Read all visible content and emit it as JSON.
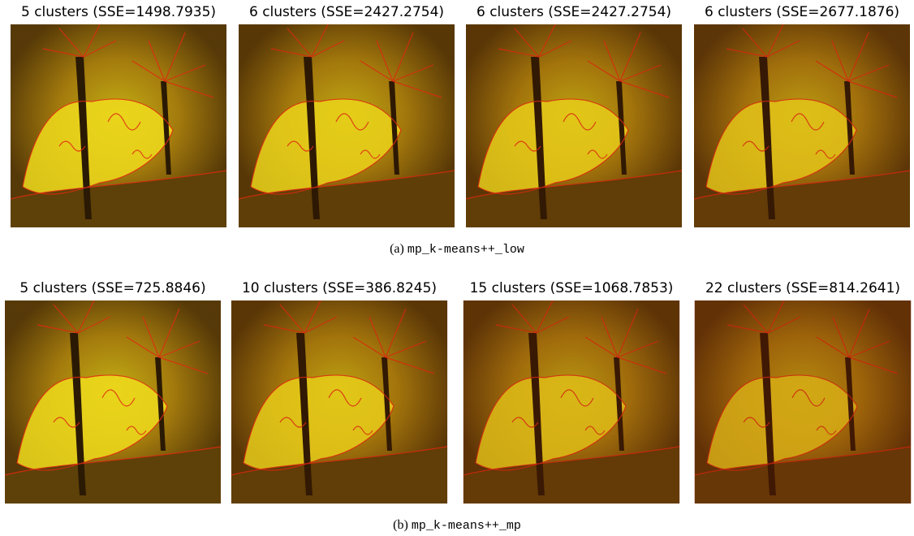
{
  "figure": {
    "rows": [
      {
        "panels": [
          {
            "title": "5 clusters (SSE=1498.7935)"
          },
          {
            "title": "6 clusters (SSE=2427.2754)"
          },
          {
            "title": "6 clusters (SSE=2427.2754)"
          },
          {
            "title": "6 clusters (SSE=2677.1876)"
          }
        ],
        "caption": {
          "label": "(a)",
          "method": "mp_k-means++_low"
        }
      },
      {
        "panels": [
          {
            "title": "5 clusters (SSE=725.8846)"
          },
          {
            "title": "10 clusters (SSE=386.8245)"
          },
          {
            "title": "15 clusters (SSE=1068.7853)"
          },
          {
            "title": "22 clusters (SSE=814.2641)"
          }
        ],
        "caption": {
          "label": "(b)",
          "method": "mp_k-means++_mp"
        }
      }
    ]
  }
}
